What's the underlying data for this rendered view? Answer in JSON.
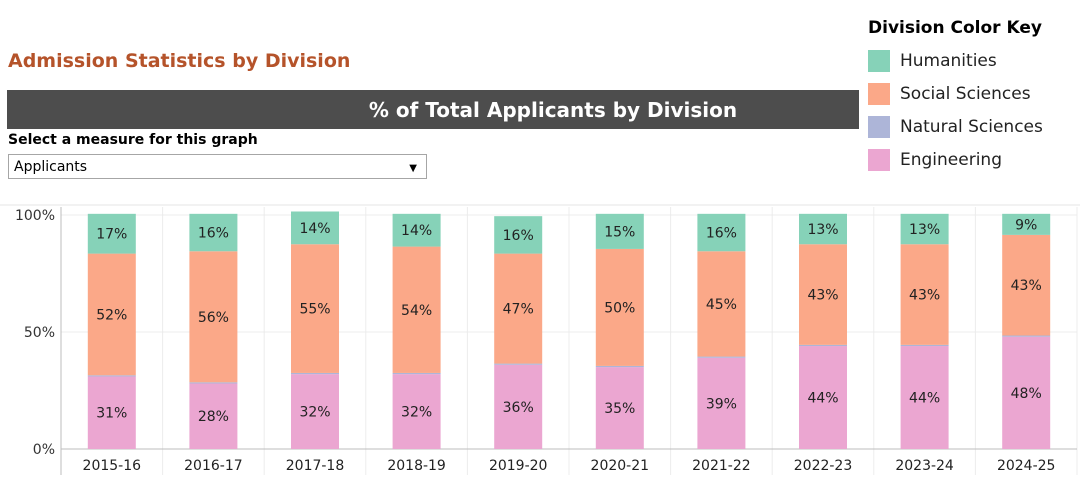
{
  "page": {
    "title": "Admission Statistics by Division",
    "banner": "% of Total Applicants by Division",
    "measure_label": "Select a measure for this graph",
    "measure_value": "Applicants"
  },
  "legend": {
    "title": "Division Color Key",
    "items": [
      {
        "label": "Humanities",
        "color": "#86d2b8"
      },
      {
        "label": "Social Sciences",
        "color": "#fba888"
      },
      {
        "label": "Natural Sciences",
        "color": "#adb5d8"
      },
      {
        "label": "Engineering",
        "color": "#eba6d1"
      }
    ]
  },
  "chart_data": {
    "type": "bar",
    "stacked": true,
    "categories": [
      "2015-16",
      "2016-17",
      "2017-18",
      "2018-19",
      "2019-20",
      "2020-21",
      "2021-22",
      "2022-23",
      "2023-24",
      "2024-25"
    ],
    "series": [
      {
        "name": "Engineering",
        "color": "#eba6d1",
        "values": [
          31,
          28,
          32,
          32,
          36,
          35,
          39,
          44,
          44,
          48
        ],
        "labels": [
          "31%",
          "28%",
          "32%",
          "32%",
          "36%",
          "35%",
          "39%",
          "44%",
          "44%",
          "48%"
        ]
      },
      {
        "name": "Natural Sciences",
        "color": "#adb5d8",
        "values": [
          0.5,
          0.5,
          0.5,
          0.5,
          0.5,
          0.5,
          0.5,
          0.5,
          0.5,
          0.5
        ],
        "labels": [
          "",
          "",
          "",
          "",
          "",
          "",
          "",
          "",
          "",
          ""
        ]
      },
      {
        "name": "Social Sciences",
        "color": "#fba888",
        "values": [
          52,
          56,
          55,
          54,
          47,
          50,
          45,
          43,
          43,
          43
        ],
        "labels": [
          "52%",
          "56%",
          "55%",
          "54%",
          "47%",
          "50%",
          "45%",
          "43%",
          "43%",
          "43%"
        ]
      },
      {
        "name": "Humanities",
        "color": "#86d2b8",
        "values": [
          17,
          16,
          14,
          14,
          16,
          15,
          16,
          13,
          13,
          9
        ],
        "labels": [
          "17%",
          "16%",
          "14%",
          "14%",
          "16%",
          "15%",
          "16%",
          "13%",
          "13%",
          "9%"
        ]
      }
    ],
    "y_ticks": [
      "0%",
      "50%",
      "100%"
    ],
    "ylim": [
      0,
      100
    ],
    "grid": true
  }
}
